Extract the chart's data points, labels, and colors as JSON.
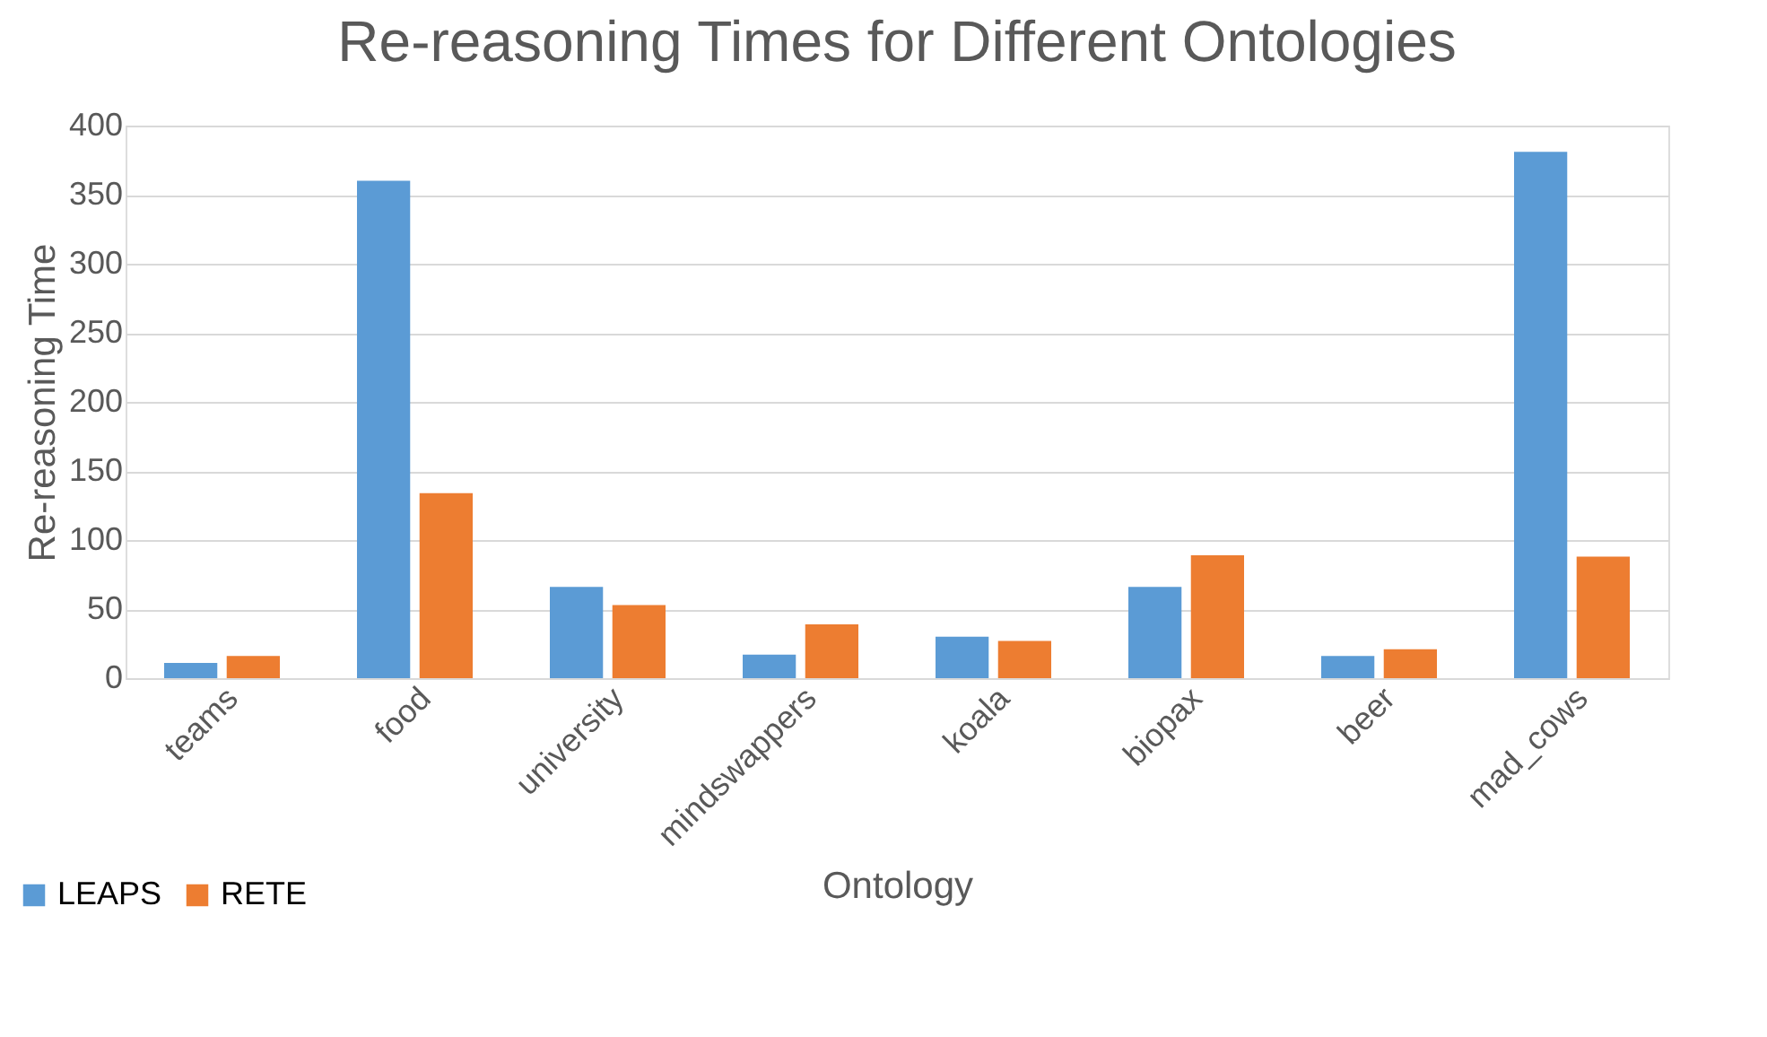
{
  "chart_data": {
    "type": "bar",
    "title": "Re-reasoning Times for Different Ontologies",
    "xlabel": "Ontology",
    "ylabel": "Re-reasoning Time",
    "categories": [
      "teams",
      "food",
      "university",
      "mindswappers",
      "koala",
      "biopax",
      "beer",
      "mad_cows"
    ],
    "series": [
      {
        "name": "LEAPS",
        "color": "#5b9bd5",
        "values": [
          11,
          360,
          66,
          17,
          30,
          66,
          16,
          381
        ]
      },
      {
        "name": "RETE",
        "color": "#ed7d31",
        "values": [
          16,
          134,
          53,
          39,
          27,
          89,
          21,
          88
        ]
      }
    ],
    "ylim": [
      0,
      400
    ],
    "yticks": [
      0,
      50,
      100,
      150,
      200,
      250,
      300,
      350,
      400
    ],
    "grid": "y",
    "legend": "bottom left"
  }
}
